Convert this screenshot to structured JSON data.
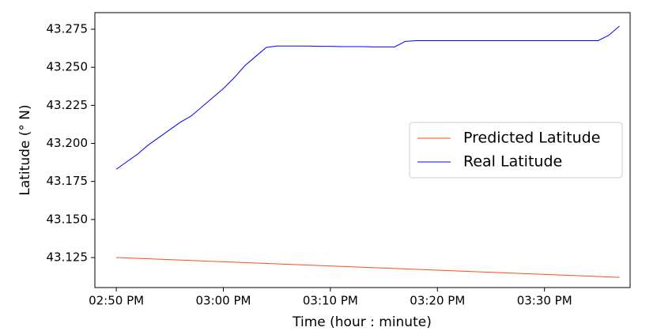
{
  "chart_data": {
    "type": "line",
    "x_label": "Time (hour : minute)",
    "y_label": "Latitude (° N)",
    "xlim": [
      "02:48 PM",
      "03:38 PM"
    ],
    "xticks": [
      "02:50 PM",
      "03:00 PM",
      "03:10 PM",
      "03:20 PM",
      "03:30 PM"
    ],
    "ylim": [
      43.1053,
      43.2859
    ],
    "yticks": [
      {
        "value": 43.125,
        "label": "43.125"
      },
      {
        "value": 43.15,
        "label": "43.150"
      },
      {
        "value": 43.175,
        "label": "43.175"
      },
      {
        "value": 43.2,
        "label": "43.200"
      },
      {
        "value": 43.225,
        "label": "43.225"
      },
      {
        "value": 43.25,
        "label": "43.250"
      },
      {
        "value": 43.275,
        "label": "43.275"
      }
    ],
    "legend": "center right",
    "series": [
      {
        "name": "Predicted Latitude",
        "color": "#f4511e",
        "x": [
          "02:50 PM",
          "03:37 PM"
        ],
        "values": [
          43.125,
          43.112
        ]
      },
      {
        "name": "Real Latitude",
        "color": "#0000ff",
        "x": [
          "02:50 PM",
          "02:51 PM",
          "02:52 PM",
          "02:53 PM",
          "02:54 PM",
          "02:55 PM",
          "02:56 PM",
          "02:57 PM",
          "02:58 PM",
          "02:59 PM",
          "03:00 PM",
          "03:01 PM",
          "03:02 PM",
          "03:03 PM",
          "03:04 PM",
          "03:05 PM",
          "03:06 PM",
          "03:07 PM",
          "03:08 PM",
          "03:09 PM",
          "03:10 PM",
          "03:11 PM",
          "03:12 PM",
          "03:13 PM",
          "03:14 PM",
          "03:15 PM",
          "03:16 PM",
          "03:17 PM",
          "03:18 PM",
          "03:19 PM",
          "03:20 PM",
          "03:21 PM",
          "03:22 PM",
          "03:23 PM",
          "03:24 PM",
          "03:25 PM",
          "03:26 PM",
          "03:27 PM",
          "03:28 PM",
          "03:29 PM",
          "03:30 PM",
          "03:31 PM",
          "03:32 PM",
          "03:33 PM",
          "03:34 PM",
          "03:35 PM",
          "03:36 PM",
          "03:37 PM"
        ],
        "values": [
          43.183,
          43.188,
          43.193,
          43.199,
          43.204,
          43.209,
          43.214,
          43.218,
          43.224,
          43.23,
          43.236,
          43.243,
          43.251,
          43.257,
          43.263,
          43.264,
          43.264,
          43.264,
          43.264,
          43.2638,
          43.2638,
          43.2636,
          43.2636,
          43.2636,
          43.2634,
          43.2634,
          43.2634,
          43.267,
          43.2675,
          43.2675,
          43.2675,
          43.2675,
          43.2675,
          43.2675,
          43.2675,
          43.2675,
          43.2675,
          43.2675,
          43.2675,
          43.2675,
          43.2675,
          43.2675,
          43.2675,
          43.2675,
          43.2675,
          43.2675,
          43.271,
          43.277
        ]
      }
    ]
  }
}
